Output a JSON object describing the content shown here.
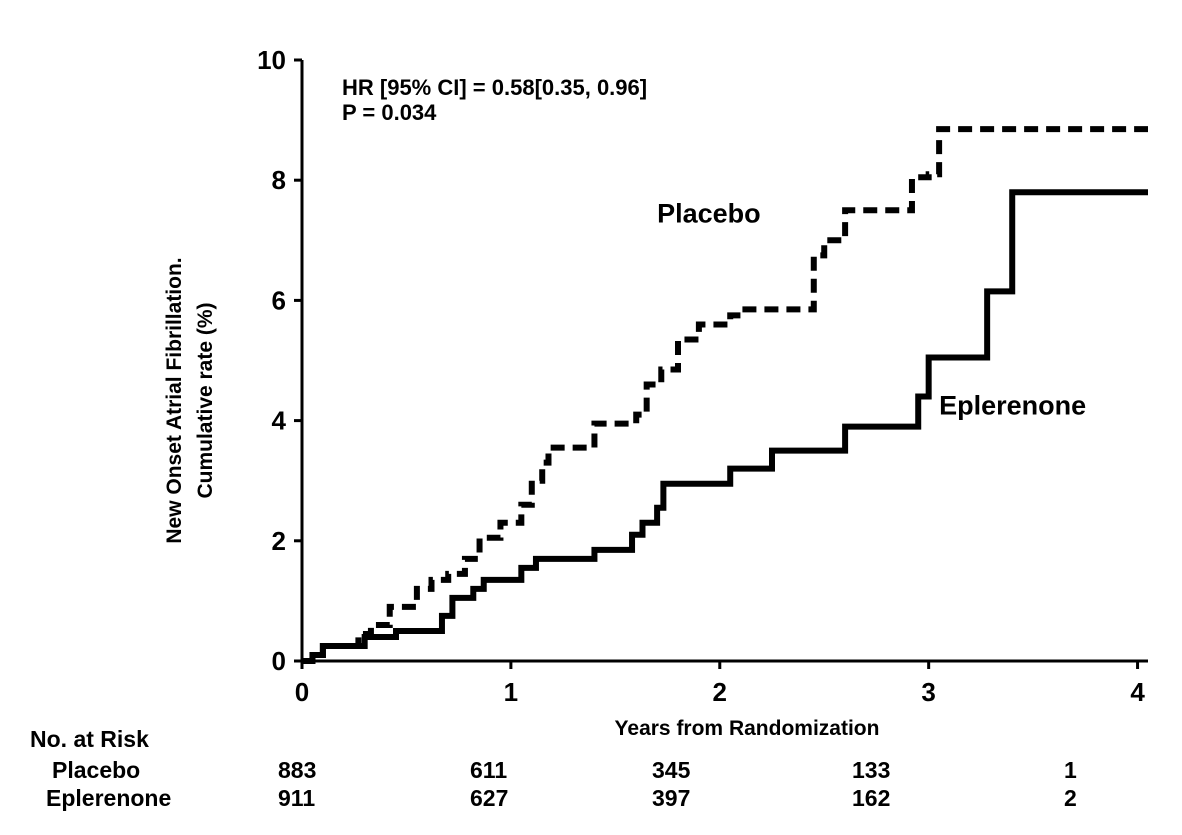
{
  "chart_data": {
    "type": "line",
    "xlabel": "Years from Randomization",
    "ylabel": [
      "New Onset Atrial Fibrillation.",
      "Cumulative rate (%)"
    ],
    "xlim": [
      0,
      4.05
    ],
    "ylim": [
      0,
      10
    ],
    "x_ticks": [
      "0",
      "1",
      "2",
      "3",
      "4"
    ],
    "y_ticks": [
      "0",
      "2",
      "4",
      "6",
      "8",
      "10"
    ],
    "annotation": [
      "HR [95% CI] = 0.58[0.35, 0.96]",
      "P = 0.034"
    ],
    "series": [
      {
        "name": "Placebo",
        "style": "dashed",
        "points": [
          [
            0,
            0
          ],
          [
            0.05,
            0.1
          ],
          [
            0.1,
            0.25
          ],
          [
            0.27,
            0.45
          ],
          [
            0.33,
            0.6
          ],
          [
            0.42,
            0.9
          ],
          [
            0.55,
            1.2
          ],
          [
            0.62,
            1.35
          ],
          [
            0.7,
            1.45
          ],
          [
            0.78,
            1.7
          ],
          [
            0.85,
            2.05
          ],
          [
            0.95,
            2.3
          ],
          [
            1.05,
            2.6
          ],
          [
            1.1,
            3.0
          ],
          [
            1.15,
            3.3
          ],
          [
            1.18,
            3.55
          ],
          [
            1.4,
            3.95
          ],
          [
            1.6,
            4.1
          ],
          [
            1.65,
            4.6
          ],
          [
            1.72,
            4.85
          ],
          [
            1.8,
            5.35
          ],
          [
            1.9,
            5.6
          ],
          [
            2.05,
            5.75
          ],
          [
            2.1,
            5.85
          ],
          [
            2.45,
            6.75
          ],
          [
            2.5,
            7.0
          ],
          [
            2.6,
            7.5
          ],
          [
            2.92,
            8.05
          ],
          [
            3.0,
            8.1
          ],
          [
            3.05,
            8.85
          ],
          [
            4.05,
            8.85
          ]
        ],
        "label_pos": {
          "x": 1.7,
          "y": 7.3
        }
      },
      {
        "name": "Eplerenone",
        "style": "solid",
        "points": [
          [
            0,
            0
          ],
          [
            0.05,
            0.1
          ],
          [
            0.1,
            0.25
          ],
          [
            0.3,
            0.4
          ],
          [
            0.45,
            0.5
          ],
          [
            0.67,
            0.75
          ],
          [
            0.72,
            1.05
          ],
          [
            0.82,
            1.2
          ],
          [
            0.87,
            1.35
          ],
          [
            1.05,
            1.55
          ],
          [
            1.12,
            1.7
          ],
          [
            1.4,
            1.85
          ],
          [
            1.58,
            2.1
          ],
          [
            1.63,
            2.3
          ],
          [
            1.7,
            2.55
          ],
          [
            1.73,
            2.95
          ],
          [
            2.05,
            3.2
          ],
          [
            2.25,
            3.5
          ],
          [
            2.6,
            3.9
          ],
          [
            2.95,
            4.4
          ],
          [
            3.0,
            5.05
          ],
          [
            3.28,
            6.15
          ],
          [
            3.4,
            7.8
          ],
          [
            4.05,
            7.8
          ]
        ],
        "label_pos": {
          "x": 3.05,
          "y": 4.1
        }
      }
    ]
  },
  "risk_table": {
    "title": "No. at Risk",
    "rows": [
      {
        "name": "Placebo",
        "values": [
          "883",
          "611",
          "345",
          "133",
          "1"
        ]
      },
      {
        "name": "Eplerenone",
        "values": [
          "911",
          "627",
          "397",
          "162",
          "2"
        ]
      }
    ]
  }
}
